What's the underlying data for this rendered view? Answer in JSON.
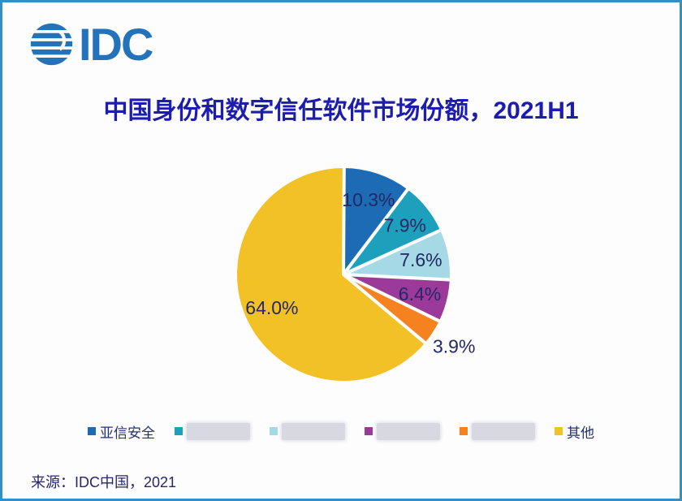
{
  "page": {
    "background_color": "#FDFDFE",
    "border_color": "#3490C0"
  },
  "logo": {
    "text": "IDC",
    "color": "#2273B9"
  },
  "chart_data": {
    "type": "pie",
    "title": "中国身份和数字信任软件市场份额，2021H1",
    "title_color": "#1C1CAE",
    "value_unit": "%",
    "start_angle_deg": 0,
    "direction": "clockwise",
    "legend_position": "bottom",
    "label_color": "#242864",
    "slices": [
      {
        "value": 10.3,
        "display_label": "10.3%",
        "color": "#1D6BB4",
        "legend_label": "亚信安全",
        "legend_redacted": false
      },
      {
        "value": 7.9,
        "display_label": "7.9%",
        "color": "#1CA0BC",
        "legend_label": "",
        "legend_redacted": true
      },
      {
        "value": 7.6,
        "display_label": "7.6%",
        "color": "#A6D9E6",
        "legend_label": "",
        "legend_redacted": true
      },
      {
        "value": 6.4,
        "display_label": "6.4%",
        "color": "#9B3A98",
        "legend_label": "",
        "legend_redacted": true
      },
      {
        "value": 3.9,
        "display_label": "3.9%",
        "color": "#F5821F",
        "legend_label": "",
        "legend_redacted": true
      },
      {
        "value": 64.0,
        "display_label": "64.0%",
        "color": "#F1C125",
        "legend_label": "其他",
        "legend_redacted": false
      }
    ]
  },
  "footer": {
    "source": "来源：IDC中国，2021"
  }
}
